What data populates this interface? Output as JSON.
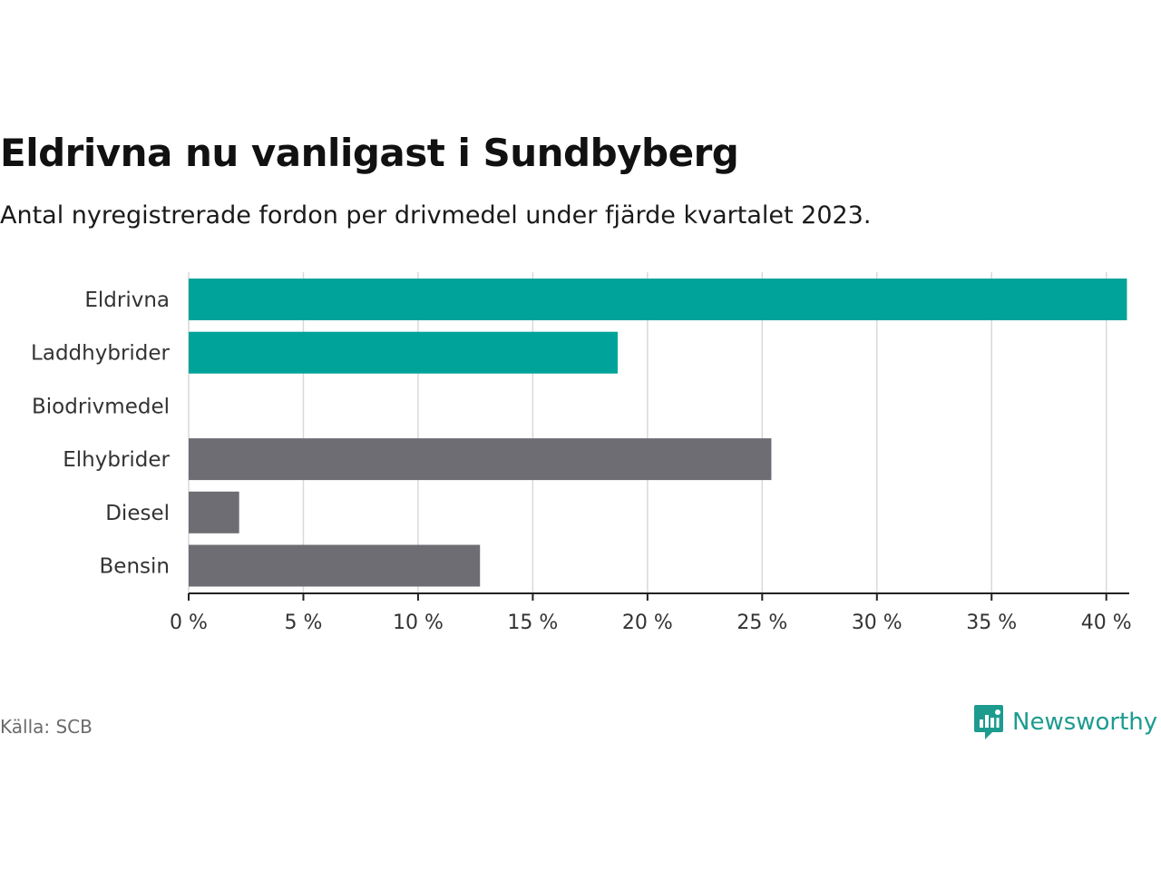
{
  "chart_data": {
    "type": "bar",
    "orientation": "horizontal",
    "title": "Eldrivna nu vanligast i Sundbyberg",
    "subtitle": "Antal nyregistrerade fordon per drivmedel under fjärde kvartalet 2023.",
    "categories": [
      "Eldrivna",
      "Laddhybrider",
      "Biodrivmedel",
      "Elhybrider",
      "Diesel",
      "Bensin"
    ],
    "values": [
      40.9,
      18.7,
      0,
      25.4,
      2.2,
      12.7
    ],
    "bar_colors": [
      "#00a39a",
      "#00a39a",
      "#00a39a",
      "#6e6d73",
      "#6e6d73",
      "#6e6d73"
    ],
    "xlim": [
      0,
      41
    ],
    "xticks": [
      0,
      5,
      10,
      15,
      20,
      25,
      30,
      35,
      40
    ],
    "xtick_labels": [
      "0 %",
      "5 %",
      "10 %",
      "15 %",
      "20 %",
      "25 %",
      "30 %",
      "35 %",
      "40 %"
    ],
    "xlabel": "",
    "ylabel": "",
    "grid": true
  },
  "footer": {
    "source": "Källa: SCB",
    "brand": "Newsworthy"
  },
  "colors": {
    "accent": "#00a39a",
    "neutral": "#6e6d73",
    "brand": "#1d9b8f"
  },
  "icons": {
    "brand_logo": "newsworthy-logo-icon"
  }
}
